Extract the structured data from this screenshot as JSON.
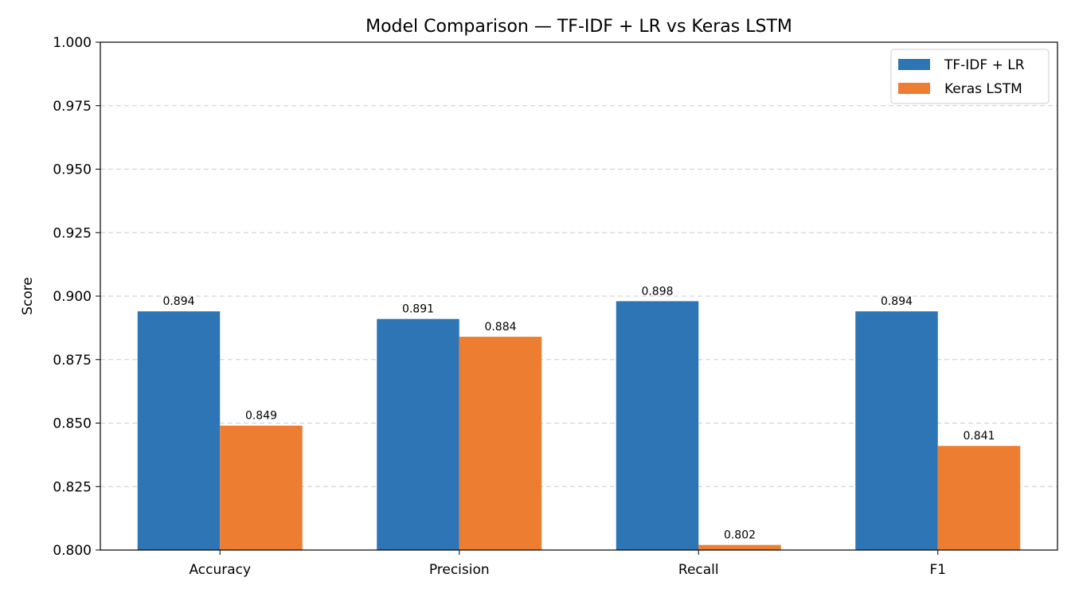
{
  "chart_data": {
    "type": "bar",
    "title": "Model Comparison — TF-IDF + LR vs Keras LSTM",
    "xlabel": "",
    "ylabel": "Score",
    "categories": [
      "Accuracy",
      "Precision",
      "Recall",
      "F1"
    ],
    "series": [
      {
        "name": "TF-IDF + LR",
        "color": "#2e75b6",
        "values": [
          0.894,
          0.891,
          0.898,
          0.894
        ]
      },
      {
        "name": "Keras LSTM",
        "color": "#ed7d31",
        "values": [
          0.849,
          0.884,
          0.802,
          0.841
        ]
      }
    ],
    "ylim": [
      0.8,
      1.0
    ],
    "yticks": [
      "0.800",
      "0.825",
      "0.850",
      "0.875",
      "0.900",
      "0.925",
      "0.950",
      "0.975",
      "1.000"
    ],
    "grid": true,
    "legend_position": "top-right"
  }
}
